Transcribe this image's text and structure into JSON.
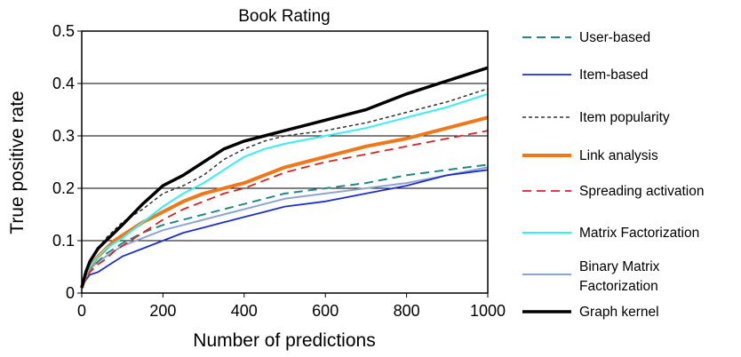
{
  "chart_data": {
    "type": "line",
    "title": "Book Rating",
    "xlabel": "Number of predictions",
    "ylabel": "True positive rate",
    "xlim": [
      0,
      1000
    ],
    "ylim": [
      0,
      0.5
    ],
    "x_ticks": [
      0,
      200,
      400,
      600,
      800,
      1000
    ],
    "x_tick_labels": [
      "0",
      "200",
      "400",
      "600",
      "800",
      "1000"
    ],
    "y_ticks": [
      0,
      0.1,
      0.2,
      0.3,
      0.4,
      0.5
    ],
    "y_tick_labels": [
      "0",
      "0.1",
      "0.2",
      "0.3",
      "0.4",
      "0.5"
    ],
    "grid": "horizontal",
    "legend_position": "right",
    "series": [
      {
        "name": "User-based",
        "color": "#1f8a84",
        "dash": "dashed",
        "width": 2,
        "x": [
          0,
          10,
          20,
          40,
          60,
          80,
          100,
          150,
          200,
          250,
          300,
          350,
          400,
          450,
          500,
          600,
          700,
          800,
          900,
          1000
        ],
        "y": [
          0.01,
          0.03,
          0.045,
          0.06,
          0.075,
          0.085,
          0.095,
          0.115,
          0.13,
          0.14,
          0.15,
          0.16,
          0.17,
          0.18,
          0.19,
          0.2,
          0.21,
          0.225,
          0.235,
          0.245
        ]
      },
      {
        "name": "Item-based",
        "color": "#1c2fd0",
        "dash": "solid",
        "width": 1.8,
        "x": [
          0,
          10,
          20,
          40,
          60,
          80,
          100,
          150,
          200,
          250,
          300,
          350,
          400,
          450,
          500,
          600,
          700,
          800,
          900,
          1000
        ],
        "y": [
          0.01,
          0.025,
          0.035,
          0.04,
          0.05,
          0.06,
          0.07,
          0.085,
          0.1,
          0.115,
          0.125,
          0.135,
          0.145,
          0.155,
          0.165,
          0.175,
          0.19,
          0.205,
          0.225,
          0.235
        ]
      },
      {
        "name": "Item popularity",
        "color": "#333333",
        "dash": "dotted",
        "width": 1.5,
        "x": [
          0,
          10,
          20,
          40,
          60,
          80,
          100,
          150,
          200,
          250,
          300,
          350,
          400,
          450,
          500,
          600,
          700,
          800,
          900,
          1000
        ],
        "y": [
          0.01,
          0.04,
          0.06,
          0.085,
          0.105,
          0.12,
          0.135,
          0.16,
          0.19,
          0.205,
          0.225,
          0.255,
          0.275,
          0.29,
          0.3,
          0.31,
          0.325,
          0.345,
          0.365,
          0.39
        ]
      },
      {
        "name": "Link analysis",
        "color": "#f07818",
        "dash": "solid",
        "width": 4,
        "x": [
          0,
          10,
          20,
          40,
          60,
          80,
          100,
          150,
          200,
          250,
          300,
          350,
          400,
          450,
          500,
          600,
          700,
          800,
          900,
          1000
        ],
        "y": [
          0.01,
          0.035,
          0.05,
          0.07,
          0.085,
          0.1,
          0.11,
          0.135,
          0.155,
          0.175,
          0.19,
          0.2,
          0.21,
          0.225,
          0.24,
          0.26,
          0.28,
          0.295,
          0.315,
          0.335
        ]
      },
      {
        "name": "Spreading activation",
        "color": "#e02020",
        "dash": "dashed",
        "width": 1.8,
        "x": [
          0,
          10,
          20,
          40,
          60,
          80,
          100,
          150,
          200,
          250,
          300,
          350,
          400,
          450,
          500,
          600,
          700,
          800,
          900,
          1000
        ],
        "y": [
          0.01,
          0.03,
          0.04,
          0.055,
          0.065,
          0.08,
          0.09,
          0.115,
          0.14,
          0.16,
          0.175,
          0.19,
          0.2,
          0.215,
          0.23,
          0.25,
          0.265,
          0.28,
          0.295,
          0.31
        ]
      },
      {
        "name": "Matrix Factorization",
        "color": "#33f0f8",
        "dash": "solid",
        "width": 2,
        "x": [
          0,
          10,
          20,
          40,
          60,
          80,
          100,
          150,
          200,
          250,
          300,
          350,
          400,
          450,
          500,
          600,
          700,
          800,
          900,
          1000
        ],
        "y": [
          0.01,
          0.035,
          0.05,
          0.07,
          0.085,
          0.095,
          0.105,
          0.135,
          0.165,
          0.19,
          0.21,
          0.235,
          0.26,
          0.275,
          0.285,
          0.3,
          0.315,
          0.335,
          0.355,
          0.38
        ]
      },
      {
        "name": "Binary Matrix Factorization",
        "color": "#8ea4d6",
        "dash": "solid",
        "width": 2,
        "x": [
          0,
          10,
          20,
          40,
          60,
          80,
          100,
          150,
          200,
          250,
          300,
          350,
          400,
          450,
          500,
          600,
          700,
          800,
          900,
          1000
        ],
        "y": [
          0.01,
          0.03,
          0.045,
          0.06,
          0.07,
          0.08,
          0.09,
          0.105,
          0.12,
          0.13,
          0.14,
          0.15,
          0.16,
          0.17,
          0.18,
          0.19,
          0.2,
          0.21,
          0.225,
          0.24
        ]
      },
      {
        "name": "Graph kernel",
        "color": "#000000",
        "dash": "solid",
        "width": 3.5,
        "x": [
          0,
          10,
          20,
          40,
          60,
          80,
          100,
          150,
          200,
          250,
          300,
          350,
          400,
          450,
          500,
          600,
          700,
          800,
          900,
          1000
        ],
        "y": [
          0.01,
          0.04,
          0.06,
          0.085,
          0.1,
          0.115,
          0.13,
          0.17,
          0.205,
          0.225,
          0.25,
          0.275,
          0.29,
          0.3,
          0.31,
          0.33,
          0.35,
          0.38,
          0.405,
          0.43
        ]
      }
    ]
  }
}
